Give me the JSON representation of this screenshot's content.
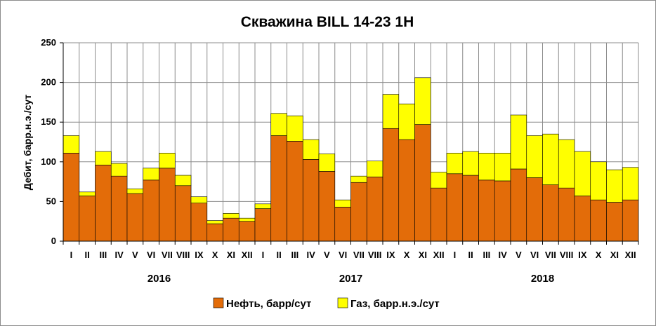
{
  "chart_data": {
    "type": "bar",
    "stacked": true,
    "title": "Скважина BILL 14-23 1H",
    "ylabel": "Дебит, барр.н.э./сут",
    "xlabel": "",
    "ylim": [
      0,
      250
    ],
    "yticks": [
      0,
      50,
      100,
      150,
      200,
      250
    ],
    "grid": true,
    "legend_position": "bottom",
    "categories": [
      "I",
      "II",
      "III",
      "IV",
      "V",
      "VI",
      "VII",
      "VIII",
      "IX",
      "X",
      "XI",
      "XII",
      "I",
      "II",
      "III",
      "IV",
      "V",
      "VI",
      "VII",
      "VIII",
      "IX",
      "X",
      "XI",
      "XII",
      "I",
      "II",
      "III",
      "IV",
      "V",
      "VI",
      "VII",
      "VIII",
      "IX",
      "X",
      "XI",
      "XII"
    ],
    "year_groups": [
      {
        "label": "2016",
        "start": 0,
        "count": 12
      },
      {
        "label": "2017",
        "start": 12,
        "count": 12
      },
      {
        "label": "2018",
        "start": 24,
        "count": 12
      }
    ],
    "series": [
      {
        "name": "Нефть, барр/сут",
        "color": "#e36c09",
        "values": [
          111,
          57,
          96,
          82,
          60,
          77,
          92,
          70,
          48,
          22,
          29,
          25,
          41,
          133,
          126,
          103,
          88,
          43,
          74,
          81,
          142,
          128,
          147,
          67,
          85,
          83,
          77,
          76,
          91,
          80,
          71,
          67,
          57,
          52,
          49,
          52
        ]
      },
      {
        "name": "Газ, барр.н.э./сут",
        "color": "#ffff00",
        "values": [
          22,
          5,
          17,
          16,
          6,
          15,
          19,
          13,
          8,
          4,
          6,
          4,
          6,
          28,
          32,
          25,
          22,
          9,
          8,
          20,
          43,
          45,
          59,
          20,
          26,
          30,
          34,
          35,
          68,
          53,
          64,
          61,
          56,
          48,
          41,
          41
        ]
      }
    ]
  }
}
